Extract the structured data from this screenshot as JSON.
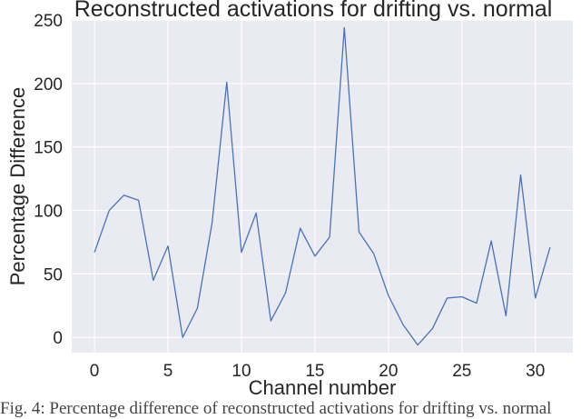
{
  "chart_data": {
    "type": "line",
    "title": "Reconstructed activations for drifting vs. normal",
    "xlabel": "Channel number",
    "ylabel": "Percentage Difference",
    "xlim": [
      -1.55,
      32.55
    ],
    "ylim": [
      -12,
      250
    ],
    "x_ticks": [
      0,
      5,
      10,
      15,
      20,
      25,
      30
    ],
    "y_ticks": [
      0,
      50,
      100,
      150,
      200,
      250
    ],
    "grid": true,
    "colors": {
      "background": "#eaeaf2",
      "grid": "#ffffff",
      "line": "#4c72b0",
      "text": "#262626"
    },
    "series": [
      {
        "x": [
          0,
          1,
          2,
          3,
          4,
          5,
          6,
          7,
          8,
          9,
          10,
          11,
          12,
          13,
          14,
          15,
          16,
          17,
          18,
          19,
          20,
          21,
          22,
          23,
          24,
          25,
          26,
          27,
          28,
          29,
          30,
          31
        ],
        "values": [
          67,
          100,
          112,
          108,
          45,
          72,
          0,
          23,
          90,
          201,
          67,
          98,
          13,
          35,
          86,
          64,
          79,
          244,
          83,
          66,
          33,
          10,
          -6,
          7,
          31,
          32,
          27,
          76,
          17,
          128,
          31,
          71
        ]
      }
    ]
  },
  "caption": "Fig. 4: Percentage difference of reconstructed activations for drifting vs. normal"
}
